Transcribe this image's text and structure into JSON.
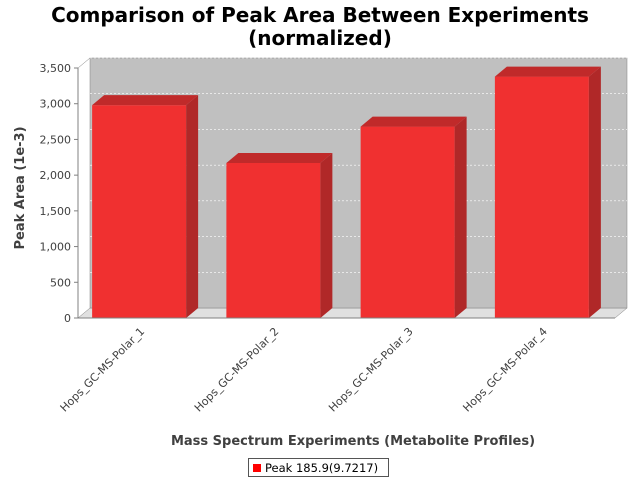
{
  "chart_data": {
    "type": "bar",
    "title": "Comparison of Peak Area Between Experiments",
    "subtitle": "(normalized)",
    "xlabel": "Mass Spectrum Experiments (Metabolite Profiles)",
    "ylabel": "Peak Area (1e-3)",
    "categories": [
      "Hops_GC-MS-Polar_1",
      "Hops_GC-MS-Polar_2",
      "Hops_GC-MS-Polar_3",
      "Hops_GC-MS-Polar_4"
    ],
    "series": [
      {
        "name": "Peak 185.9(9.7217)",
        "values": [
          2980,
          2170,
          2680,
          3380
        ],
        "color": "#ff0000"
      }
    ],
    "ylim": [
      0,
      3500
    ],
    "yticks": [
      0,
      500,
      1000,
      1500,
      2000,
      2500,
      3000,
      3500
    ],
    "ytick_labels": [
      "0",
      "500",
      "1,000",
      "1,500",
      "2,000",
      "2,500",
      "3,000",
      "3,500"
    ],
    "grid": true,
    "legend_position": "bottom-center",
    "style": "3d-bar",
    "plot_background": "#c0c0c0"
  }
}
